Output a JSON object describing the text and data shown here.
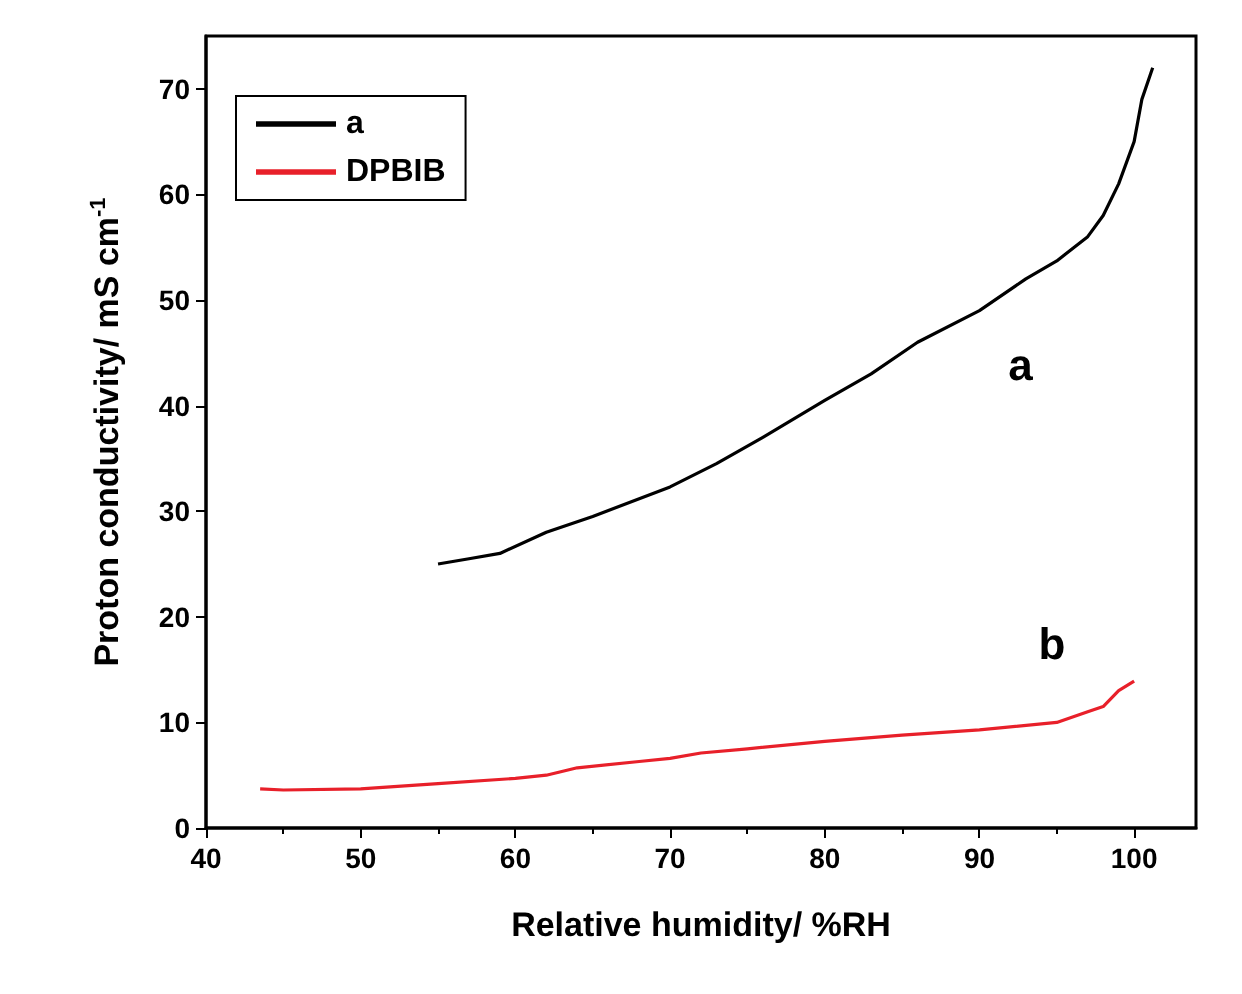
{
  "chart_data": {
    "type": "line",
    "xlabel": "Relative humidity/ %RH",
    "ylabel": "Proton conductivity/ mS cm$^{-1}$",
    "xlim": [
      40,
      104
    ],
    "xticks": [
      40,
      50,
      60,
      70,
      80,
      90,
      100
    ],
    "ylim": [
      0,
      75
    ],
    "yticks": [
      0,
      10,
      20,
      30,
      40,
      50,
      60,
      70
    ],
    "legend": "top left",
    "grid": false,
    "marker": "none",
    "line_style": "solid",
    "series": [
      {
        "name": "a",
        "color": "#000000",
        "x": [
          55,
          57,
          59,
          62,
          65,
          70,
          73,
          76,
          80,
          83,
          86,
          90,
          93,
          95,
          97,
          98,
          99,
          100,
          100.5,
          101.2
        ],
        "values": [
          25,
          25.5,
          26,
          28,
          29.5,
          32.3,
          34.5,
          37,
          40.5,
          43,
          46,
          49,
          52,
          53.7,
          56,
          58,
          61,
          65,
          69,
          72
        ]
      },
      {
        "name": "DPBIB",
        "color": "#e8202a",
        "x": [
          43.5,
          45,
          50,
          55,
          60,
          62,
          64,
          68,
          70,
          72,
          75,
          80,
          85,
          90,
          95,
          97,
          98,
          99,
          100
        ],
        "values": [
          3.7,
          3.6,
          3.7,
          4.2,
          4.7,
          5,
          5.7,
          6.3,
          6.6,
          7.1,
          7.5,
          8.2,
          8.8,
          9.3,
          10,
          11,
          11.5,
          13,
          13.9
        ]
      }
    ],
    "annotations": [
      "a",
      "b"
    ]
  }
}
